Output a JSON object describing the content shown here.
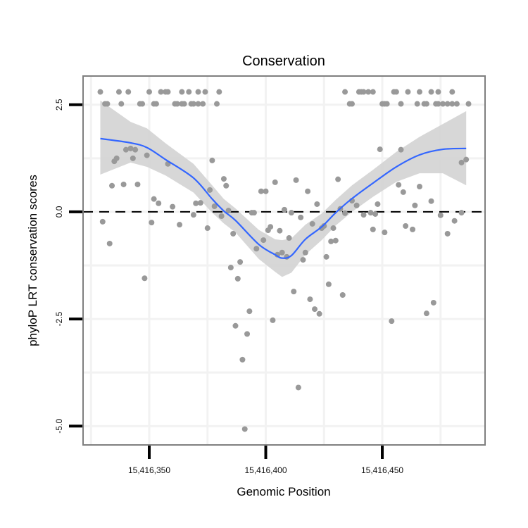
{
  "chart_data": {
    "type": "scatter",
    "title": "Conservation",
    "xlabel": "Genomic Position",
    "ylabel": "phyloP LRT conservation scores",
    "xlim": [
      15416321.6,
      15416494.1
    ],
    "ylim": [
      -5.44,
      3.17
    ],
    "grid": true,
    "x_ticks": [
      {
        "value": 15416350,
        "label": "15,416,350"
      },
      {
        "value": 15416400,
        "label": "15,416,400"
      },
      {
        "value": 15416450,
        "label": "15,416,450"
      }
    ],
    "y_ticks": [
      {
        "value": 2.5,
        "label": "2.5"
      },
      {
        "value": 0.0,
        "label": "0.0"
      },
      {
        "value": -2.5,
        "label": "-2.5"
      },
      {
        "value": -5.0,
        "label": "-5.0"
      }
    ],
    "reference_line": {
      "y": 0,
      "style": "dashed",
      "color": "#000000"
    },
    "colors": {
      "points": "#999999",
      "smooth": "#3366FF",
      "band": "#d3d3d3",
      "frame": "#7f7f7f"
    },
    "x_offset": 15416000,
    "points": [
      [
        329,
        2.8
      ],
      [
        337,
        2.8
      ],
      [
        341,
        2.8
      ],
      [
        350,
        2.8
      ],
      [
        355,
        2.8
      ],
      [
        357,
        2.8
      ],
      [
        358,
        2.8
      ],
      [
        364,
        2.8
      ],
      [
        367,
        2.8
      ],
      [
        371,
        2.8
      ],
      [
        374,
        2.8
      ],
      [
        380,
        2.8
      ],
      [
        434,
        2.8
      ],
      [
        440,
        2.8
      ],
      [
        441,
        2.8
      ],
      [
        442,
        2.8
      ],
      [
        444,
        2.8
      ],
      [
        446,
        2.8
      ],
      [
        455,
        2.8
      ],
      [
        456,
        2.8
      ],
      [
        461,
        2.8
      ],
      [
        466,
        2.8
      ],
      [
        471,
        2.8
      ],
      [
        474,
        2.8
      ],
      [
        480,
        2.8
      ],
      [
        331,
        2.52
      ],
      [
        332,
        2.52
      ],
      [
        338,
        2.52
      ],
      [
        346,
        2.52
      ],
      [
        347,
        2.52
      ],
      [
        352,
        2.52
      ],
      [
        353,
        2.52
      ],
      [
        361,
        2.52
      ],
      [
        362,
        2.52
      ],
      [
        364,
        2.52
      ],
      [
        365,
        2.52
      ],
      [
        368,
        2.52
      ],
      [
        369,
        2.52
      ],
      [
        371,
        2.52
      ],
      [
        373,
        2.52
      ],
      [
        379,
        2.52
      ],
      [
        436,
        2.52
      ],
      [
        437,
        2.52
      ],
      [
        450,
        2.52
      ],
      [
        451,
        2.52
      ],
      [
        452,
        2.52
      ],
      [
        458,
        2.52
      ],
      [
        465,
        2.52
      ],
      [
        468,
        2.52
      ],
      [
        469,
        2.52
      ],
      [
        473,
        2.52
      ],
      [
        474,
        2.52
      ],
      [
        476,
        2.52
      ],
      [
        478,
        2.52
      ],
      [
        480,
        2.52
      ],
      [
        482,
        2.52
      ],
      [
        487,
        2.52
      ],
      [
        330,
        -0.23
      ],
      [
        333,
        -0.74
      ],
      [
        334,
        0.61
      ],
      [
        335,
        1.18
      ],
      [
        336,
        1.25
      ],
      [
        339,
        0.64
      ],
      [
        340,
        1.45
      ],
      [
        342,
        1.48
      ],
      [
        344,
        1.45
      ],
      [
        343,
        1.25
      ],
      [
        345,
        0.64
      ],
      [
        348,
        -1.55
      ],
      [
        349,
        1.32
      ],
      [
        351,
        -0.25
      ],
      [
        352,
        0.3
      ],
      [
        354,
        0.2
      ],
      [
        358,
        1.12
      ],
      [
        360,
        0.12
      ],
      [
        363,
        -0.3
      ],
      [
        369,
        -0.07
      ],
      [
        370,
        0.2
      ],
      [
        372,
        0.21
      ],
      [
        375,
        -0.38
      ],
      [
        376,
        0.51
      ],
      [
        377,
        1.2
      ],
      [
        378,
        0.13
      ],
      [
        381,
        -0.1
      ],
      [
        382,
        0.77
      ],
      [
        383,
        0.61
      ],
      [
        384,
        0.03
      ],
      [
        386,
        -0.51
      ],
      [
        385,
        -1.3
      ],
      [
        389,
        -1.17
      ],
      [
        388,
        -1.56
      ],
      [
        393,
        -2.32
      ],
      [
        387,
        -2.66
      ],
      [
        392,
        -2.85
      ],
      [
        390,
        -3.45
      ],
      [
        391,
        -5.07
      ],
      [
        394,
        -0.02
      ],
      [
        395,
        -0.02
      ],
      [
        398,
        0.48
      ],
      [
        400,
        0.48
      ],
      [
        404,
        0.69
      ],
      [
        413,
        0.74
      ],
      [
        418,
        0.48
      ],
      [
        422,
        0.18
      ],
      [
        408,
        0.05
      ],
      [
        411,
        -0.02
      ],
      [
        415,
        -0.13
      ],
      [
        406,
        -0.44
      ],
      [
        401,
        -0.43
      ],
      [
        402,
        -0.35
      ],
      [
        399,
        -0.66
      ],
      [
        396,
        -0.86
      ],
      [
        405,
        -1.0
      ],
      [
        407,
        -0.95
      ],
      [
        409,
        -1.05
      ],
      [
        410,
        -0.61
      ],
      [
        417,
        -0.95
      ],
      [
        416,
        -1.12
      ],
      [
        420,
        -0.28
      ],
      [
        424,
        -0.38
      ],
      [
        425,
        -0.33
      ],
      [
        429,
        -0.38
      ],
      [
        428,
        -0.69
      ],
      [
        430,
        -0.67
      ],
      [
        426,
        -1.05
      ],
      [
        427,
        -1.69
      ],
      [
        412,
        -1.86
      ],
      [
        419,
        -2.04
      ],
      [
        433,
        -1.94
      ],
      [
        421,
        -2.27
      ],
      [
        423,
        -2.38
      ],
      [
        403,
        -2.53
      ],
      [
        414,
        -4.1
      ],
      [
        431,
        0.76
      ],
      [
        434,
        -0.03
      ],
      [
        432,
        0.07
      ],
      [
        437,
        0.26
      ],
      [
        439,
        0.15
      ],
      [
        442,
        -0.07
      ],
      [
        445,
        -0.02
      ],
      [
        447,
        -0.05
      ],
      [
        448,
        0.18
      ],
      [
        449,
        1.46
      ],
      [
        446,
        -0.41
      ],
      [
        451,
        -0.48
      ],
      [
        458,
        1.45
      ],
      [
        457,
        0.63
      ],
      [
        459,
        0.46
      ],
      [
        460,
        -0.33
      ],
      [
        463,
        -0.41
      ],
      [
        464,
        0.15
      ],
      [
        466,
        0.59
      ],
      [
        471,
        0.25
      ],
      [
        475,
        -0.08
      ],
      [
        478,
        -0.51
      ],
      [
        481,
        -0.21
      ],
      [
        484,
        -0.02
      ],
      [
        484,
        1.15
      ],
      [
        486,
        1.22
      ],
      [
        454,
        -2.55
      ],
      [
        469,
        -2.37
      ],
      [
        472,
        -2.12
      ]
    ],
    "smooth": {
      "method": "loess",
      "x": [
        329,
        342,
        349,
        357,
        369,
        377,
        382,
        387,
        397,
        404,
        407,
        411,
        417,
        424,
        430,
        437,
        446,
        456,
        466,
        476,
        486
      ],
      "y": [
        1.71,
        1.61,
        1.5,
        1.22,
        0.79,
        0.3,
        0.02,
        -0.2,
        -0.76,
        -1.0,
        -1.08,
        -1.02,
        -0.64,
        -0.35,
        -0.02,
        0.31,
        0.67,
        1.05,
        1.33,
        1.46,
        1.48
      ],
      "lo": [
        0.87,
        1.15,
        1.05,
        0.85,
        0.45,
        -0.02,
        -0.27,
        -0.48,
        -1.1,
        -1.4,
        -1.52,
        -1.42,
        -1.0,
        -0.66,
        -0.32,
        0.0,
        0.35,
        0.7,
        0.9,
        0.9,
        0.62
      ],
      "hi": [
        2.6,
        2.1,
        1.95,
        1.6,
        1.12,
        0.62,
        0.3,
        0.08,
        -0.42,
        -0.64,
        -0.66,
        -0.62,
        -0.3,
        -0.04,
        0.28,
        0.62,
        0.98,
        1.4,
        1.75,
        2.05,
        2.35
      ]
    }
  }
}
